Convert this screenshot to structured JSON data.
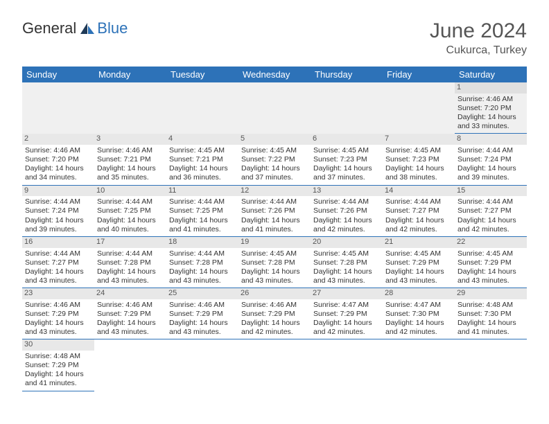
{
  "logo": {
    "text1": "General",
    "text2": "Blue"
  },
  "title": "June 2024",
  "location": "Cukurca, Turkey",
  "colors": {
    "header_bg": "#2d72b8",
    "header_text": "#ffffff",
    "border": "#2d72b8",
    "daynum_bg": "#e8e8e8",
    "firstrow_bg": "#f0f0f0",
    "text": "#333333",
    "title_color": "#555555"
  },
  "weekdays": [
    "Sunday",
    "Monday",
    "Tuesday",
    "Wednesday",
    "Thursday",
    "Friday",
    "Saturday"
  ],
  "days": {
    "1": {
      "sr": "4:46 AM",
      "ss": "7:20 PM",
      "dh": 14,
      "dm": 33
    },
    "2": {
      "sr": "4:46 AM",
      "ss": "7:20 PM",
      "dh": 14,
      "dm": 34
    },
    "3": {
      "sr": "4:46 AM",
      "ss": "7:21 PM",
      "dh": 14,
      "dm": 35
    },
    "4": {
      "sr": "4:45 AM",
      "ss": "7:21 PM",
      "dh": 14,
      "dm": 36
    },
    "5": {
      "sr": "4:45 AM",
      "ss": "7:22 PM",
      "dh": 14,
      "dm": 37
    },
    "6": {
      "sr": "4:45 AM",
      "ss": "7:23 PM",
      "dh": 14,
      "dm": 37
    },
    "7": {
      "sr": "4:45 AM",
      "ss": "7:23 PM",
      "dh": 14,
      "dm": 38
    },
    "8": {
      "sr": "4:44 AM",
      "ss": "7:24 PM",
      "dh": 14,
      "dm": 39
    },
    "9": {
      "sr": "4:44 AM",
      "ss": "7:24 PM",
      "dh": 14,
      "dm": 39
    },
    "10": {
      "sr": "4:44 AM",
      "ss": "7:25 PM",
      "dh": 14,
      "dm": 40
    },
    "11": {
      "sr": "4:44 AM",
      "ss": "7:25 PM",
      "dh": 14,
      "dm": 41
    },
    "12": {
      "sr": "4:44 AM",
      "ss": "7:26 PM",
      "dh": 14,
      "dm": 41
    },
    "13": {
      "sr": "4:44 AM",
      "ss": "7:26 PM",
      "dh": 14,
      "dm": 42
    },
    "14": {
      "sr": "4:44 AM",
      "ss": "7:27 PM",
      "dh": 14,
      "dm": 42
    },
    "15": {
      "sr": "4:44 AM",
      "ss": "7:27 PM",
      "dh": 14,
      "dm": 42
    },
    "16": {
      "sr": "4:44 AM",
      "ss": "7:27 PM",
      "dh": 14,
      "dm": 43
    },
    "17": {
      "sr": "4:44 AM",
      "ss": "7:28 PM",
      "dh": 14,
      "dm": 43
    },
    "18": {
      "sr": "4:44 AM",
      "ss": "7:28 PM",
      "dh": 14,
      "dm": 43
    },
    "19": {
      "sr": "4:45 AM",
      "ss": "7:28 PM",
      "dh": 14,
      "dm": 43
    },
    "20": {
      "sr": "4:45 AM",
      "ss": "7:28 PM",
      "dh": 14,
      "dm": 43
    },
    "21": {
      "sr": "4:45 AM",
      "ss": "7:29 PM",
      "dh": 14,
      "dm": 43
    },
    "22": {
      "sr": "4:45 AM",
      "ss": "7:29 PM",
      "dh": 14,
      "dm": 43
    },
    "23": {
      "sr": "4:46 AM",
      "ss": "7:29 PM",
      "dh": 14,
      "dm": 43
    },
    "24": {
      "sr": "4:46 AM",
      "ss": "7:29 PM",
      "dh": 14,
      "dm": 43
    },
    "25": {
      "sr": "4:46 AM",
      "ss": "7:29 PM",
      "dh": 14,
      "dm": 43
    },
    "26": {
      "sr": "4:46 AM",
      "ss": "7:29 PM",
      "dh": 14,
      "dm": 42
    },
    "27": {
      "sr": "4:47 AM",
      "ss": "7:29 PM",
      "dh": 14,
      "dm": 42
    },
    "28": {
      "sr": "4:47 AM",
      "ss": "7:30 PM",
      "dh": 14,
      "dm": 42
    },
    "29": {
      "sr": "4:48 AM",
      "ss": "7:30 PM",
      "dh": 14,
      "dm": 41
    },
    "30": {
      "sr": "4:48 AM",
      "ss": "7:29 PM",
      "dh": 14,
      "dm": 41
    }
  },
  "layout": {
    "first_weekday_index": 6,
    "num_days": 30,
    "cols": 7,
    "rows": 6
  },
  "labels": {
    "sunrise": "Sunrise:",
    "sunset": "Sunset:",
    "daylight_prefix": "Daylight:",
    "hours_word": "hours",
    "and_word": "and",
    "minutes_word": "minutes."
  }
}
